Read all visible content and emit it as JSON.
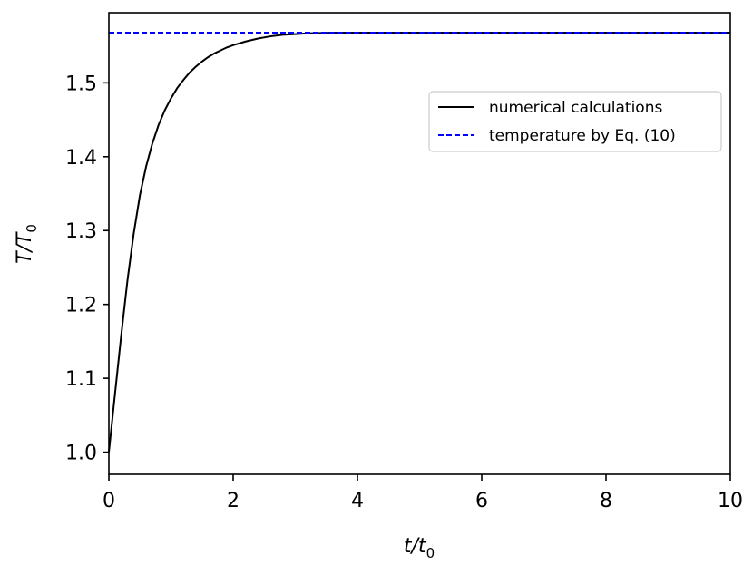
{
  "chart_data": {
    "type": "line",
    "xlabel": {
      "main": "t/t",
      "sub": "0"
    },
    "ylabel": {
      "main": "T/T",
      "sub": "0"
    },
    "xlim": [
      0,
      10
    ],
    "ylim": [
      0.97,
      1.595
    ],
    "xticks": [
      0,
      2,
      4,
      6,
      8,
      10
    ],
    "xtick_labels": [
      "0",
      "2",
      "4",
      "6",
      "8",
      "10"
    ],
    "yticks": [
      1.0,
      1.1,
      1.2,
      1.3,
      1.4,
      1.5
    ],
    "ytick_labels": [
      "1.0",
      "1.1",
      "1.2",
      "1.3",
      "1.4",
      "1.5"
    ],
    "grid": false,
    "legend_position": "upper-right",
    "series": [
      {
        "name": "numerical calculations",
        "style": "solid",
        "color": "#000000",
        "x": [
          0,
          0.1,
          0.2,
          0.3,
          0.4,
          0.5,
          0.6,
          0.7,
          0.8,
          0.9,
          1.0,
          1.1,
          1.2,
          1.3,
          1.4,
          1.5,
          1.6,
          1.7,
          1.8,
          1.9,
          2.0,
          2.2,
          2.4,
          2.6,
          2.8,
          3.0,
          3.2,
          3.4,
          3.6,
          3.8,
          4.0,
          4.5,
          5,
          6,
          7,
          8,
          9,
          10
        ],
        "y": [
          1.0,
          1.08,
          1.159,
          1.233,
          1.296,
          1.348,
          1.387,
          1.418,
          1.443,
          1.463,
          1.479,
          1.493,
          1.504,
          1.514,
          1.522,
          1.529,
          1.535,
          1.54,
          1.544,
          1.548,
          1.551,
          1.556,
          1.56,
          1.563,
          1.565,
          1.566,
          1.567,
          1.5675,
          1.568,
          1.568,
          1.568,
          1.568,
          1.568,
          1.568,
          1.568,
          1.568,
          1.568,
          1.568
        ]
      },
      {
        "name": "temperature by Eq. (10)",
        "style": "dashed",
        "color": "#0000ff",
        "x": [
          0,
          10
        ],
        "y": [
          1.568,
          1.568
        ]
      }
    ]
  }
}
